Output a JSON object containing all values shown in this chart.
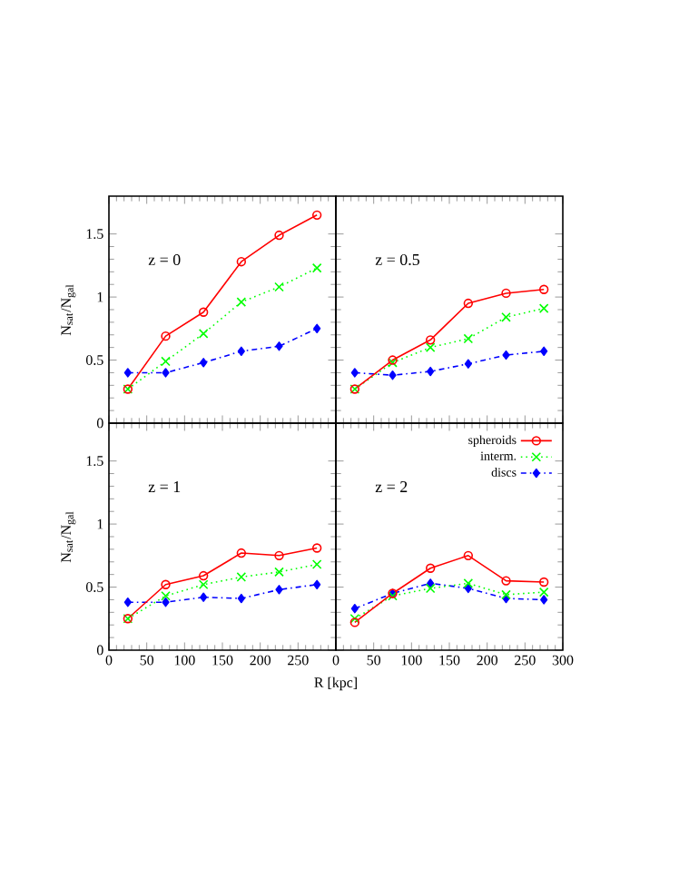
{
  "chart_data": [
    {
      "type": "line",
      "annotations": [
        "z = 0"
      ],
      "ylabel": "N$_{sat}$/N$_{gal}$",
      "x": [
        25,
        75,
        125,
        175,
        225,
        275
      ],
      "xlim": [
        0,
        300
      ],
      "ylim": [
        0,
        1.8
      ],
      "xticks": [
        0,
        50,
        100,
        150,
        200,
        250,
        300
      ],
      "yticks": [
        0,
        0.5,
        1,
        1.5
      ],
      "tick_labels": "y",
      "series": [
        {
          "color": "#ff0000",
          "marker": "circle",
          "line_style": "solid",
          "values": [
            0.27,
            0.69,
            0.88,
            1.28,
            1.49,
            1.65
          ]
        },
        {
          "color": "#00ff00",
          "marker": "cross",
          "line_style": "dotted",
          "values": [
            0.27,
            0.49,
            0.71,
            0.96,
            1.08,
            1.23
          ]
        },
        {
          "color": "#0000ff",
          "marker": "diamond",
          "line_style": "dashdot",
          "values": [
            0.4,
            0.4,
            0.48,
            0.57,
            0.61,
            0.75
          ]
        }
      ]
    },
    {
      "type": "line",
      "annotations": [
        "z = 0.5"
      ],
      "x": [
        25,
        75,
        125,
        175,
        225,
        275
      ],
      "xlim": [
        0,
        300
      ],
      "ylim": [
        0,
        1.8
      ],
      "xticks": [
        0,
        50,
        100,
        150,
        200,
        250,
        300
      ],
      "yticks": [
        0,
        0.5,
        1,
        1.5
      ],
      "tick_labels": false,
      "series": [
        {
          "color": "#ff0000",
          "marker": "circle",
          "line_style": "solid",
          "values": [
            0.27,
            0.5,
            0.66,
            0.95,
            1.03,
            1.06
          ]
        },
        {
          "color": "#00ff00",
          "marker": "cross",
          "line_style": "dotted",
          "values": [
            0.27,
            0.48,
            0.6,
            0.67,
            0.84,
            0.91
          ]
        },
        {
          "color": "#0000ff",
          "marker": "diamond",
          "line_style": "dashdot",
          "values": [
            0.4,
            0.38,
            0.41,
            0.47,
            0.54,
            0.57
          ]
        }
      ]
    },
    {
      "type": "line",
      "annotations": [
        "z = 1"
      ],
      "ylabel": "N$_{sat}$/N$_{gal}$",
      "xlabel": "R [kpc]",
      "x": [
        25,
        75,
        125,
        175,
        225,
        275
      ],
      "xlim": [
        0,
        300
      ],
      "ylim": [
        0,
        1.8
      ],
      "xticks": [
        0,
        50,
        100,
        150,
        200,
        250,
        {
          "value": 300,
          "label": null
        }
      ],
      "yticks": [
        0,
        0.5,
        1,
        1.5
      ],
      "series": [
        {
          "color": "#ff0000",
          "marker": "circle",
          "line_style": "solid",
          "values": [
            0.25,
            0.52,
            0.59,
            0.77,
            0.75,
            0.81
          ]
        },
        {
          "color": "#00ff00",
          "marker": "cross",
          "line_style": "dotted",
          "values": [
            0.25,
            0.43,
            0.52,
            0.58,
            0.62,
            0.68
          ]
        },
        {
          "color": "#0000ff",
          "marker": "diamond",
          "line_style": "dashdot",
          "values": [
            0.38,
            0.38,
            0.42,
            0.41,
            0.48,
            0.52
          ]
        }
      ]
    },
    {
      "type": "line",
      "annotations": [
        "z = 2"
      ],
      "x": [
        25,
        75,
        125,
        175,
        225,
        275
      ],
      "xlim": [
        0,
        300
      ],
      "ylim": [
        0,
        1.8
      ],
      "xticks": [
        0,
        50,
        100,
        150,
        200,
        250,
        300
      ],
      "yticks": [
        0,
        0.5,
        1,
        1.5
      ],
      "tick_labels": "x",
      "legend": "top right",
      "series": [
        {
          "name": "spheroids",
          "color": "#ff0000",
          "marker": "circle",
          "line_style": "solid",
          "values": [
            0.22,
            0.45,
            0.65,
            0.75,
            0.55,
            0.54
          ]
        },
        {
          "name": "interm.",
          "color": "#00ff00",
          "marker": "cross",
          "line_style": "dotted",
          "values": [
            0.25,
            0.43,
            0.49,
            0.53,
            0.44,
            0.46
          ]
        },
        {
          "name": "discs",
          "color": "#0000ff",
          "marker": "diamond",
          "line_style": "dashdot",
          "values": [
            0.33,
            0.45,
            0.53,
            0.49,
            0.41,
            0.4
          ]
        }
      ]
    }
  ]
}
